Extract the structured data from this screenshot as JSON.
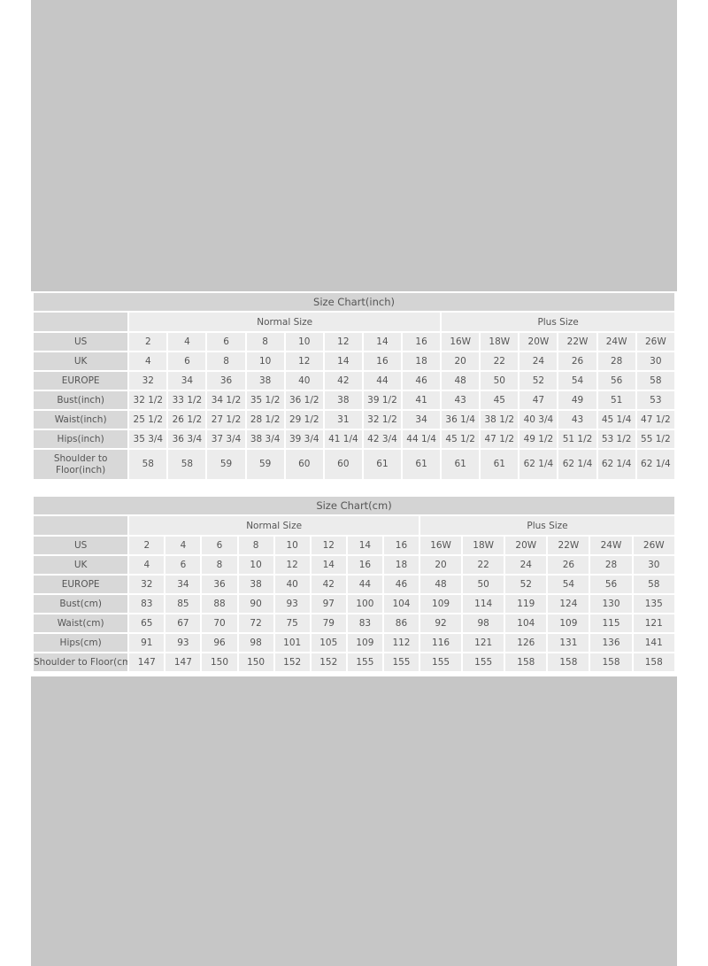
{
  "charts": [
    {
      "title": "Size Chart(inch)",
      "groups": [
        "Normal Size",
        "Plus Size"
      ],
      "normal_count": 8,
      "plus_count": 6,
      "rows": [
        {
          "label": "US",
          "values": [
            "2",
            "4",
            "6",
            "8",
            "10",
            "12",
            "14",
            "16",
            "16W",
            "18W",
            "20W",
            "22W",
            "24W",
            "26W"
          ]
        },
        {
          "label": "UK",
          "values": [
            "4",
            "6",
            "8",
            "10",
            "12",
            "14",
            "16",
            "18",
            "20",
            "22",
            "24",
            "26",
            "28",
            "30"
          ]
        },
        {
          "label": "EUROPE",
          "values": [
            "32",
            "34",
            "36",
            "38",
            "40",
            "42",
            "44",
            "46",
            "48",
            "50",
            "52",
            "54",
            "56",
            "58"
          ]
        },
        {
          "label": "Bust(inch)",
          "values": [
            "32 1/2",
            "33 1/2",
            "34 1/2",
            "35 1/2",
            "36 1/2",
            "38",
            "39 1/2",
            "41",
            "43",
            "45",
            "47",
            "49",
            "51",
            "53"
          ]
        },
        {
          "label": "Waist(inch)",
          "values": [
            "25 1/2",
            "26 1/2",
            "27 1/2",
            "28 1/2",
            "29 1/2",
            "31",
            "32 1/2",
            "34",
            "36 1/4",
            "38 1/2",
            "40 3/4",
            "43",
            "45 1/4",
            "47 1/2"
          ]
        },
        {
          "label": "Hips(inch)",
          "values": [
            "35 3/4",
            "36 3/4",
            "37 3/4",
            "38 3/4",
            "39 3/4",
            "41 1/4",
            "42 3/4",
            "44 1/4",
            "45 1/2",
            "47 1/2",
            "49 1/2",
            "51 1/2",
            "53 1/2",
            "55 1/2"
          ]
        },
        {
          "label": "Shoulder to Floor(inch)",
          "values": [
            "58",
            "58",
            "59",
            "59",
            "60",
            "60",
            "61",
            "61",
            "61",
            "61",
            "62 1/4",
            "62 1/4",
            "62 1/4",
            "62 1/4"
          ]
        }
      ]
    },
    {
      "title": "Size Chart(cm)",
      "groups": [
        "Normal Size",
        "Plus Size"
      ],
      "normal_count": 8,
      "plus_count": 6,
      "rows": [
        {
          "label": "US",
          "values": [
            "2",
            "4",
            "6",
            "8",
            "10",
            "12",
            "14",
            "16",
            "16W",
            "18W",
            "20W",
            "22W",
            "24W",
            "26W"
          ]
        },
        {
          "label": "UK",
          "values": [
            "4",
            "6",
            "8",
            "10",
            "12",
            "14",
            "16",
            "18",
            "20",
            "22",
            "24",
            "26",
            "28",
            "30"
          ]
        },
        {
          "label": "EUROPE",
          "values": [
            "32",
            "34",
            "36",
            "38",
            "40",
            "42",
            "44",
            "46",
            "48",
            "50",
            "52",
            "54",
            "56",
            "58"
          ]
        },
        {
          "label": "Bust(cm)",
          "values": [
            "83",
            "85",
            "88",
            "90",
            "93",
            "97",
            "100",
            "104",
            "109",
            "114",
            "119",
            "124",
            "130",
            "135"
          ]
        },
        {
          "label": "Waist(cm)",
          "values": [
            "65",
            "67",
            "70",
            "72",
            "75",
            "79",
            "83",
            "86",
            "92",
            "98",
            "104",
            "109",
            "115",
            "121"
          ]
        },
        {
          "label": "Hips(cm)",
          "values": [
            "91",
            "93",
            "96",
            "98",
            "101",
            "105",
            "109",
            "112",
            "116",
            "121",
            "126",
            "131",
            "136",
            "141"
          ]
        },
        {
          "label": "Shoulder to Floor(cm)",
          "values": [
            "147",
            "147",
            "150",
            "150",
            "152",
            "152",
            "155",
            "155",
            "155",
            "155",
            "158",
            "158",
            "158",
            "158"
          ]
        }
      ]
    }
  ]
}
